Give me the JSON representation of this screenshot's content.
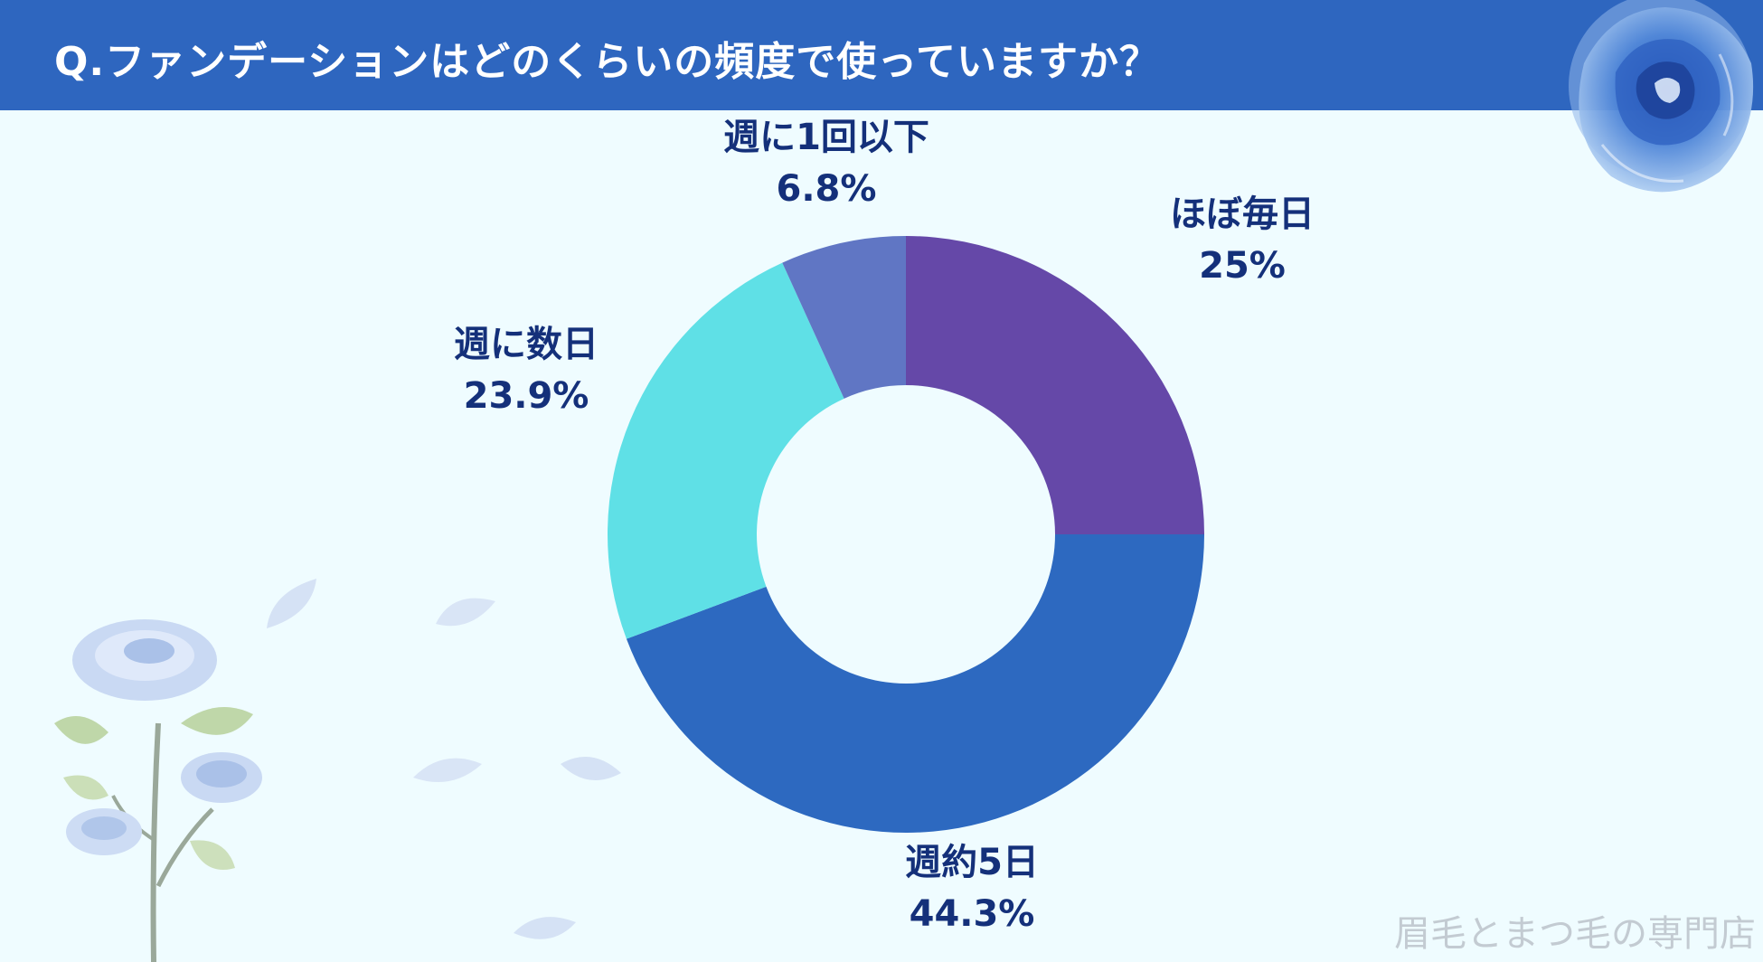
{
  "header": {
    "title": "Q.ファンデーションはどのくらいの頻度で使っていますか？"
  },
  "chart_data": {
    "type": "pie",
    "donut": true,
    "categories": [
      "ほぼ毎日",
      "週約5日",
      "週に数日",
      "週に1回以下"
    ],
    "values": [
      25,
      44.3,
      23.9,
      6.8
    ],
    "value_labels": [
      "25%",
      "44.3%",
      "23.9%",
      "6.8%"
    ],
    "colors": [
      "#6548a8",
      "#2d69c0",
      "#5fe0e6",
      "#6076c4"
    ],
    "start": "12 o'clock",
    "direction": "clockwise"
  },
  "watermark": "眉毛とまつ毛の専門店",
  "decorations": {
    "top_right": "blue-rose-icon",
    "bottom_left": "blue-rose-branch-icon",
    "petals": "petal-icon"
  }
}
